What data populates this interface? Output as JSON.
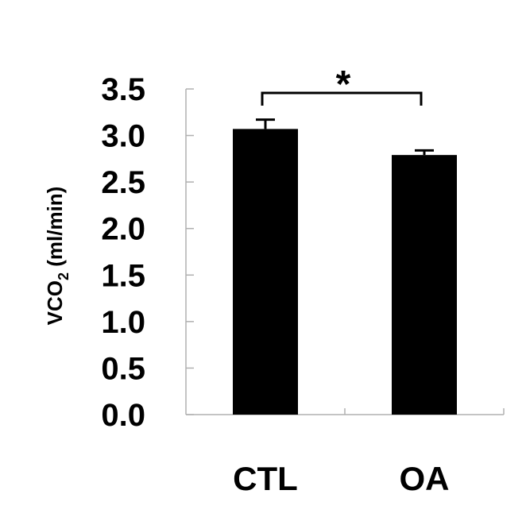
{
  "chart_data": {
    "type": "bar",
    "categories": [
      "CTL",
      "OA"
    ],
    "values": [
      3.07,
      2.79
    ],
    "errors": [
      0.1,
      0.05
    ],
    "ylim": [
      0,
      3.5
    ],
    "yticks": [
      "0.0",
      "0.5",
      "1.0",
      "1.5",
      "2.0",
      "2.5",
      "3.0",
      "3.5"
    ],
    "ylabel": {
      "main": "VCO",
      "subscript": "2",
      "unit": " (ml/min)"
    },
    "xlabel": "",
    "title": "",
    "grid": false,
    "bar_color": "#000000",
    "significance": {
      "between": [
        "CTL",
        "OA"
      ],
      "label": "*"
    }
  }
}
